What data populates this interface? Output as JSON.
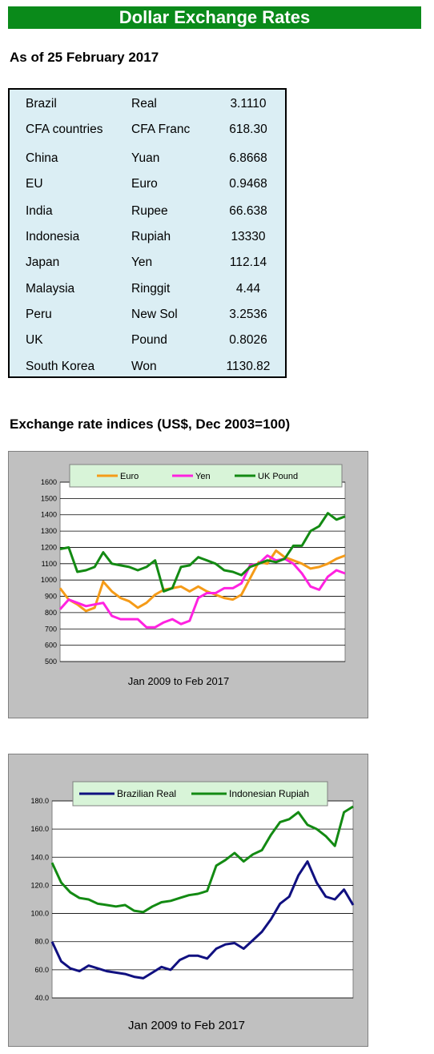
{
  "header": {
    "title": "Dollar Exchange Rates"
  },
  "as_of": "As of 25 February 2017",
  "rates": [
    {
      "country": "Brazil",
      "currency": "Real",
      "rate": "3.1110"
    },
    {
      "country": "CFA countries",
      "currency": "CFA Franc",
      "rate": "618.30"
    },
    {
      "country": "China",
      "currency": "Yuan",
      "rate": "6.8668"
    },
    {
      "country": "EU",
      "currency": "Euro",
      "rate": "0.9468"
    },
    {
      "country": "India",
      "currency": "Rupee",
      "rate": "66.638"
    },
    {
      "country": "Indonesia",
      "currency": "Rupiah",
      "rate": "13330"
    },
    {
      "country": "Japan",
      "currency": "Yen",
      "rate": "112.14"
    },
    {
      "country": "Malaysia",
      "currency": "Ringgit",
      "rate": "4.44"
    },
    {
      "country": "Peru",
      "currency": "New Sol",
      "rate": "3.2536"
    },
    {
      "country": "UK",
      "currency": "Pound",
      "rate": "0.8026"
    },
    {
      "country": "South Korea",
      "currency": "Won",
      "rate": "1130.82"
    }
  ],
  "section_title": "Exchange rate indices (US$, Dec 2003=100)",
  "chart_data": [
    {
      "type": "line",
      "title": "",
      "xlabel": "Jan 2009 to Feb 2017",
      "ylabel": "",
      "ylim": [
        500,
        1600
      ],
      "yticks": [
        "500",
        "600",
        "700",
        "800",
        "900",
        "1000",
        "1100",
        "1200",
        "1300",
        "1400",
        "1500",
        "1600"
      ],
      "grid": true,
      "legend": "top",
      "x": [
        0,
        3,
        6,
        9,
        12,
        15,
        18,
        21,
        24,
        27,
        30,
        33,
        36,
        39,
        42,
        45,
        48,
        51,
        54,
        57,
        60,
        63,
        66,
        69,
        72,
        75,
        78,
        81,
        84,
        87,
        90,
        93,
        96,
        99
      ],
      "series": [
        {
          "name": "Euro",
          "color": "#f59b18",
          "values": [
            950,
            880,
            850,
            810,
            830,
            990,
            930,
            890,
            870,
            830,
            860,
            910,
            940,
            950,
            960,
            930,
            960,
            930,
            910,
            890,
            880,
            910,
            1010,
            1110,
            1100,
            1180,
            1140,
            1120,
            1100,
            1070,
            1080,
            1100,
            1130,
            1150
          ]
        },
        {
          "name": "Yen",
          "color": "#ff22e0",
          "values": [
            820,
            880,
            860,
            840,
            850,
            860,
            780,
            760,
            760,
            760,
            710,
            710,
            740,
            760,
            730,
            750,
            890,
            920,
            920,
            950,
            950,
            980,
            1090,
            1100,
            1150,
            1120,
            1130,
            1100,
            1040,
            960,
            940,
            1020,
            1060,
            1040
          ]
        },
        {
          "name": "UK Pound",
          "color": "#138a13",
          "values": [
            1190,
            1200,
            1050,
            1060,
            1080,
            1170,
            1100,
            1090,
            1080,
            1060,
            1080,
            1120,
            930,
            950,
            1080,
            1090,
            1140,
            1120,
            1100,
            1060,
            1050,
            1030,
            1080,
            1100,
            1120,
            1110,
            1130,
            1210,
            1210,
            1300,
            1330,
            1410,
            1370,
            1390
          ]
        }
      ]
    },
    {
      "type": "line",
      "title": "",
      "xlabel": "Jan 2009 to Feb 2017",
      "ylabel": "",
      "ylim": [
        40,
        180
      ],
      "yticks": [
        "40.0",
        "60.0",
        "80.0",
        "100.0",
        "120.0",
        "140.0",
        "160.0",
        "180.0"
      ],
      "grid": true,
      "legend": "top",
      "x": [
        0,
        3,
        6,
        9,
        12,
        15,
        18,
        21,
        24,
        27,
        30,
        33,
        36,
        39,
        42,
        45,
        48,
        51,
        54,
        57,
        60,
        63,
        66,
        69,
        72,
        75,
        78,
        81,
        84,
        87,
        90,
        93,
        96,
        99
      ],
      "series": [
        {
          "name": "Brazilian Real",
          "color": "#101080",
          "values": [
            80,
            66,
            61,
            59,
            63,
            61,
            59,
            58,
            57,
            55,
            54,
            58,
            62,
            60,
            67,
            70,
            70,
            68,
            75,
            78,
            79,
            75,
            81,
            87,
            96,
            107,
            112,
            127,
            137,
            122,
            112,
            110,
            117,
            106
          ]
        },
        {
          "name": "Indonesian Rupiah",
          "color": "#138a13",
          "values": [
            136,
            122,
            115,
            111,
            110,
            107,
            106,
            105,
            106,
            102,
            101,
            105,
            108,
            109,
            111,
            113,
            114,
            116,
            134,
            138,
            143,
            137,
            142,
            145,
            156,
            165,
            167,
            172,
            163,
            160,
            155,
            148,
            172,
            176
          ]
        }
      ]
    }
  ]
}
